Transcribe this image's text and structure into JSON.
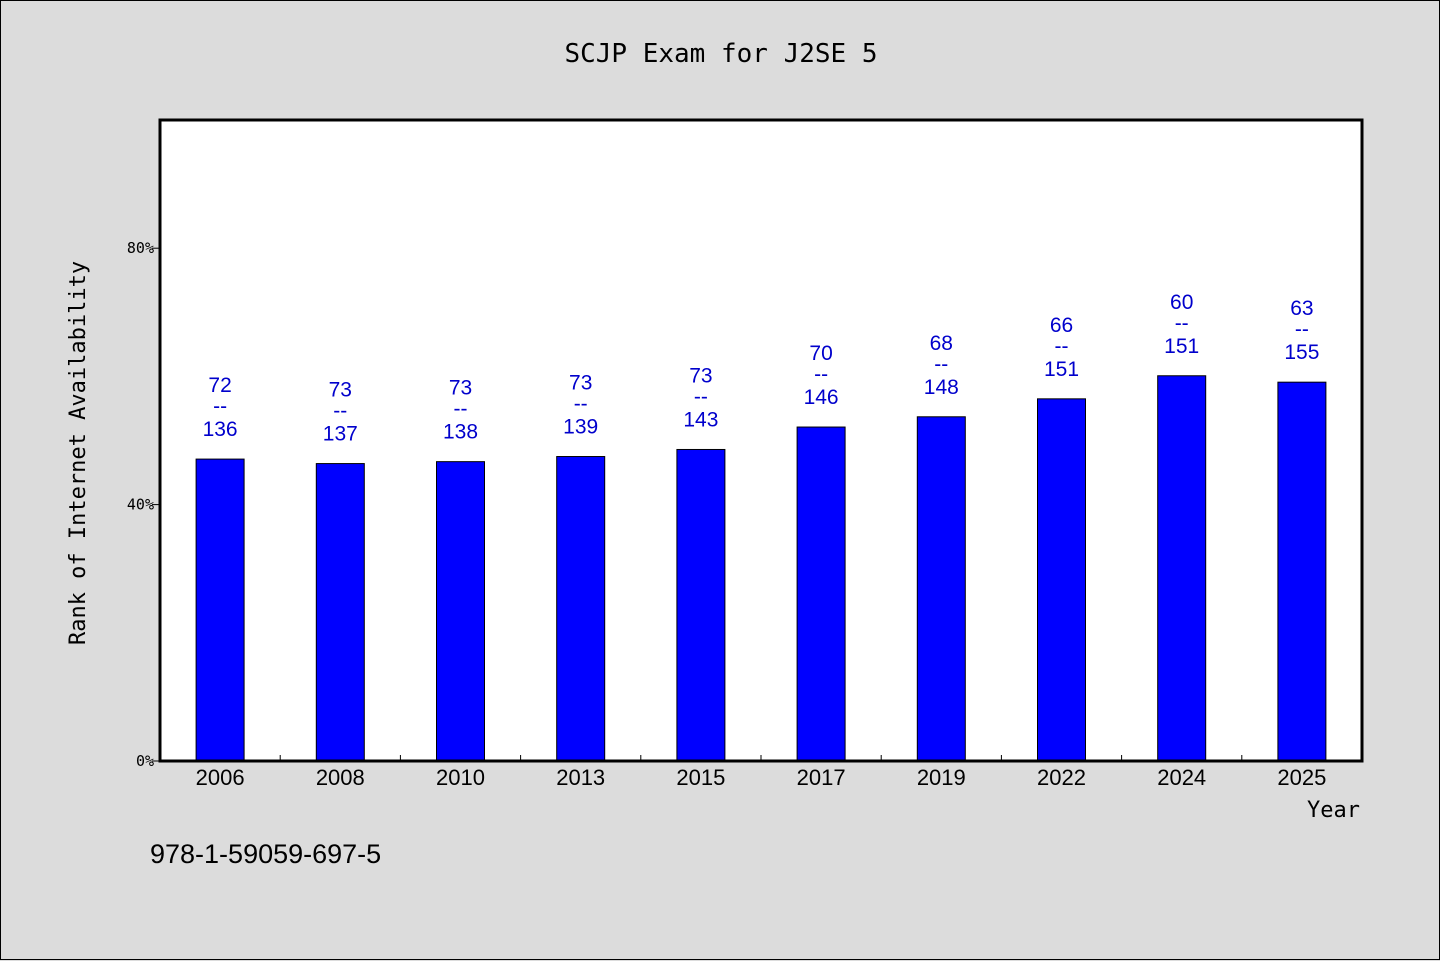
{
  "chart_data": {
    "type": "bar",
    "title": "SCJP Exam for J2SE 5",
    "xlabel": "Year",
    "ylabel": "Rank of Internet Availability",
    "ylim": [
      0,
      100
    ],
    "yticks": [
      0,
      40,
      80
    ],
    "ytick_labels": [
      "0%",
      "40%",
      "80%"
    ],
    "grid": false,
    "categories": [
      "2006",
      "2008",
      "2010",
      "2013",
      "2015",
      "2017",
      "2019",
      "2022",
      "2024",
      "2025"
    ],
    "values": [
      47.1,
      46.4,
      46.7,
      47.5,
      48.6,
      52.1,
      53.7,
      56.5,
      60.1,
      59.1
    ],
    "data_labels": [
      {
        "rank": "72",
        "separator": "--",
        "total": "136"
      },
      {
        "rank": "73",
        "separator": "--",
        "total": "137"
      },
      {
        "rank": "73",
        "separator": "--",
        "total": "138"
      },
      {
        "rank": "73",
        "separator": "--",
        "total": "139"
      },
      {
        "rank": "73",
        "separator": "--",
        "total": "143"
      },
      {
        "rank": "70",
        "separator": "--",
        "total": "146"
      },
      {
        "rank": "68",
        "separator": "--",
        "total": "148"
      },
      {
        "rank": "66",
        "separator": "--",
        "total": "151"
      },
      {
        "rank": "60",
        "separator": "--",
        "total": "151"
      },
      {
        "rank": "63",
        "separator": "--",
        "total": "155"
      }
    ],
    "bar_color": "#0000ff",
    "label_color": "#0000cc",
    "plot_background": "#ffffff",
    "page_background": "#dcdcdc"
  },
  "footer": {
    "isbn": "978-1-59059-697-5"
  }
}
